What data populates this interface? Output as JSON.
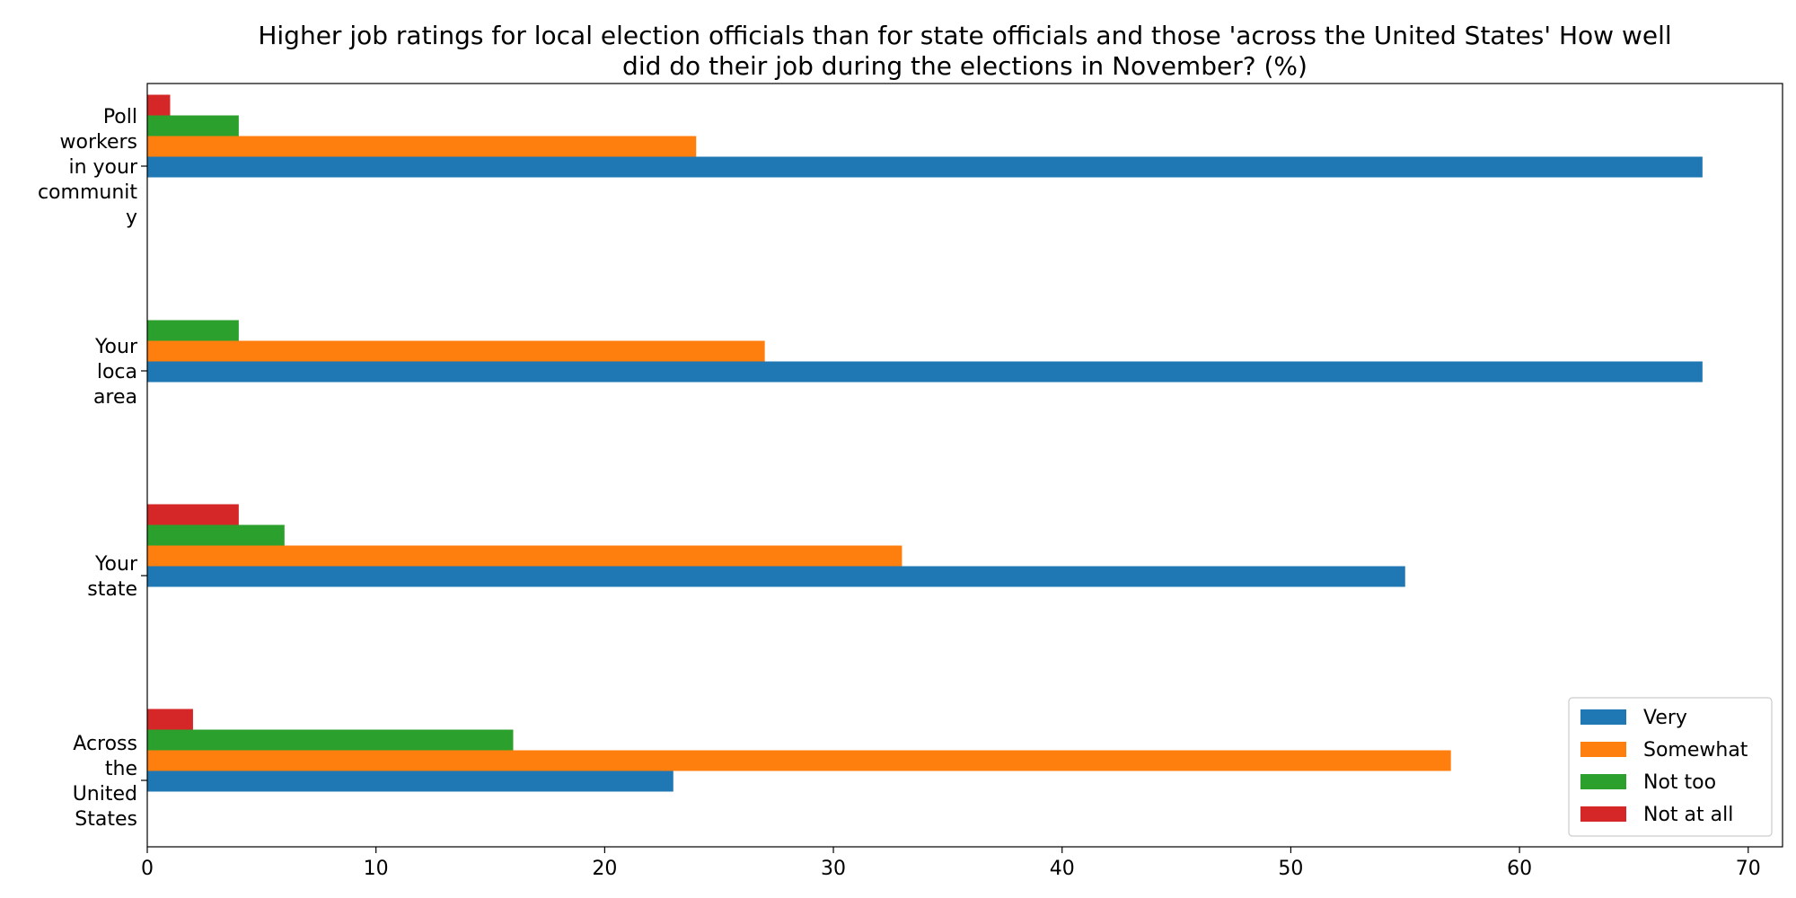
{
  "chart_data": {
    "type": "bar",
    "orientation": "horizontal",
    "title": "Higher job ratings for local election officials than for state officials and those 'across the United States' How well did do their job during the elections in November? (%)",
    "title_lines": [
      "Higher job ratings for local election officials than for state officials and those 'across the United States' How well",
      "did do their job during the elections in November? (%)"
    ],
    "categories": [
      "Across the United States",
      "Your state",
      "Your loca area",
      "Poll workers in your community"
    ],
    "category_label_lines": [
      [
        "Across",
        "the",
        "United",
        "States"
      ],
      [
        "Your",
        "state"
      ],
      [
        "Your",
        "loca",
        "area"
      ],
      [
        "Poll",
        "workers",
        "in your",
        "communit",
        "y"
      ]
    ],
    "series": [
      {
        "name": "Very",
        "color": "#1f77b4",
        "values": [
          23,
          55,
          68,
          68
        ]
      },
      {
        "name": "Somewhat",
        "color": "#ff7f0e",
        "values": [
          57,
          33,
          27,
          24
        ]
      },
      {
        "name": "Not too",
        "color": "#2ca02c",
        "values": [
          16,
          6,
          4,
          4
        ]
      },
      {
        "name": "Not at all",
        "color": "#d62728",
        "values": [
          2,
          4,
          0,
          1
        ]
      }
    ],
    "xlim": [
      0,
      71.5
    ],
    "xticks": [
      0,
      10,
      20,
      30,
      40,
      50,
      60,
      70
    ],
    "xlabel": "",
    "ylabel": "",
    "grid": false,
    "legend_position": "bottom-right"
  }
}
